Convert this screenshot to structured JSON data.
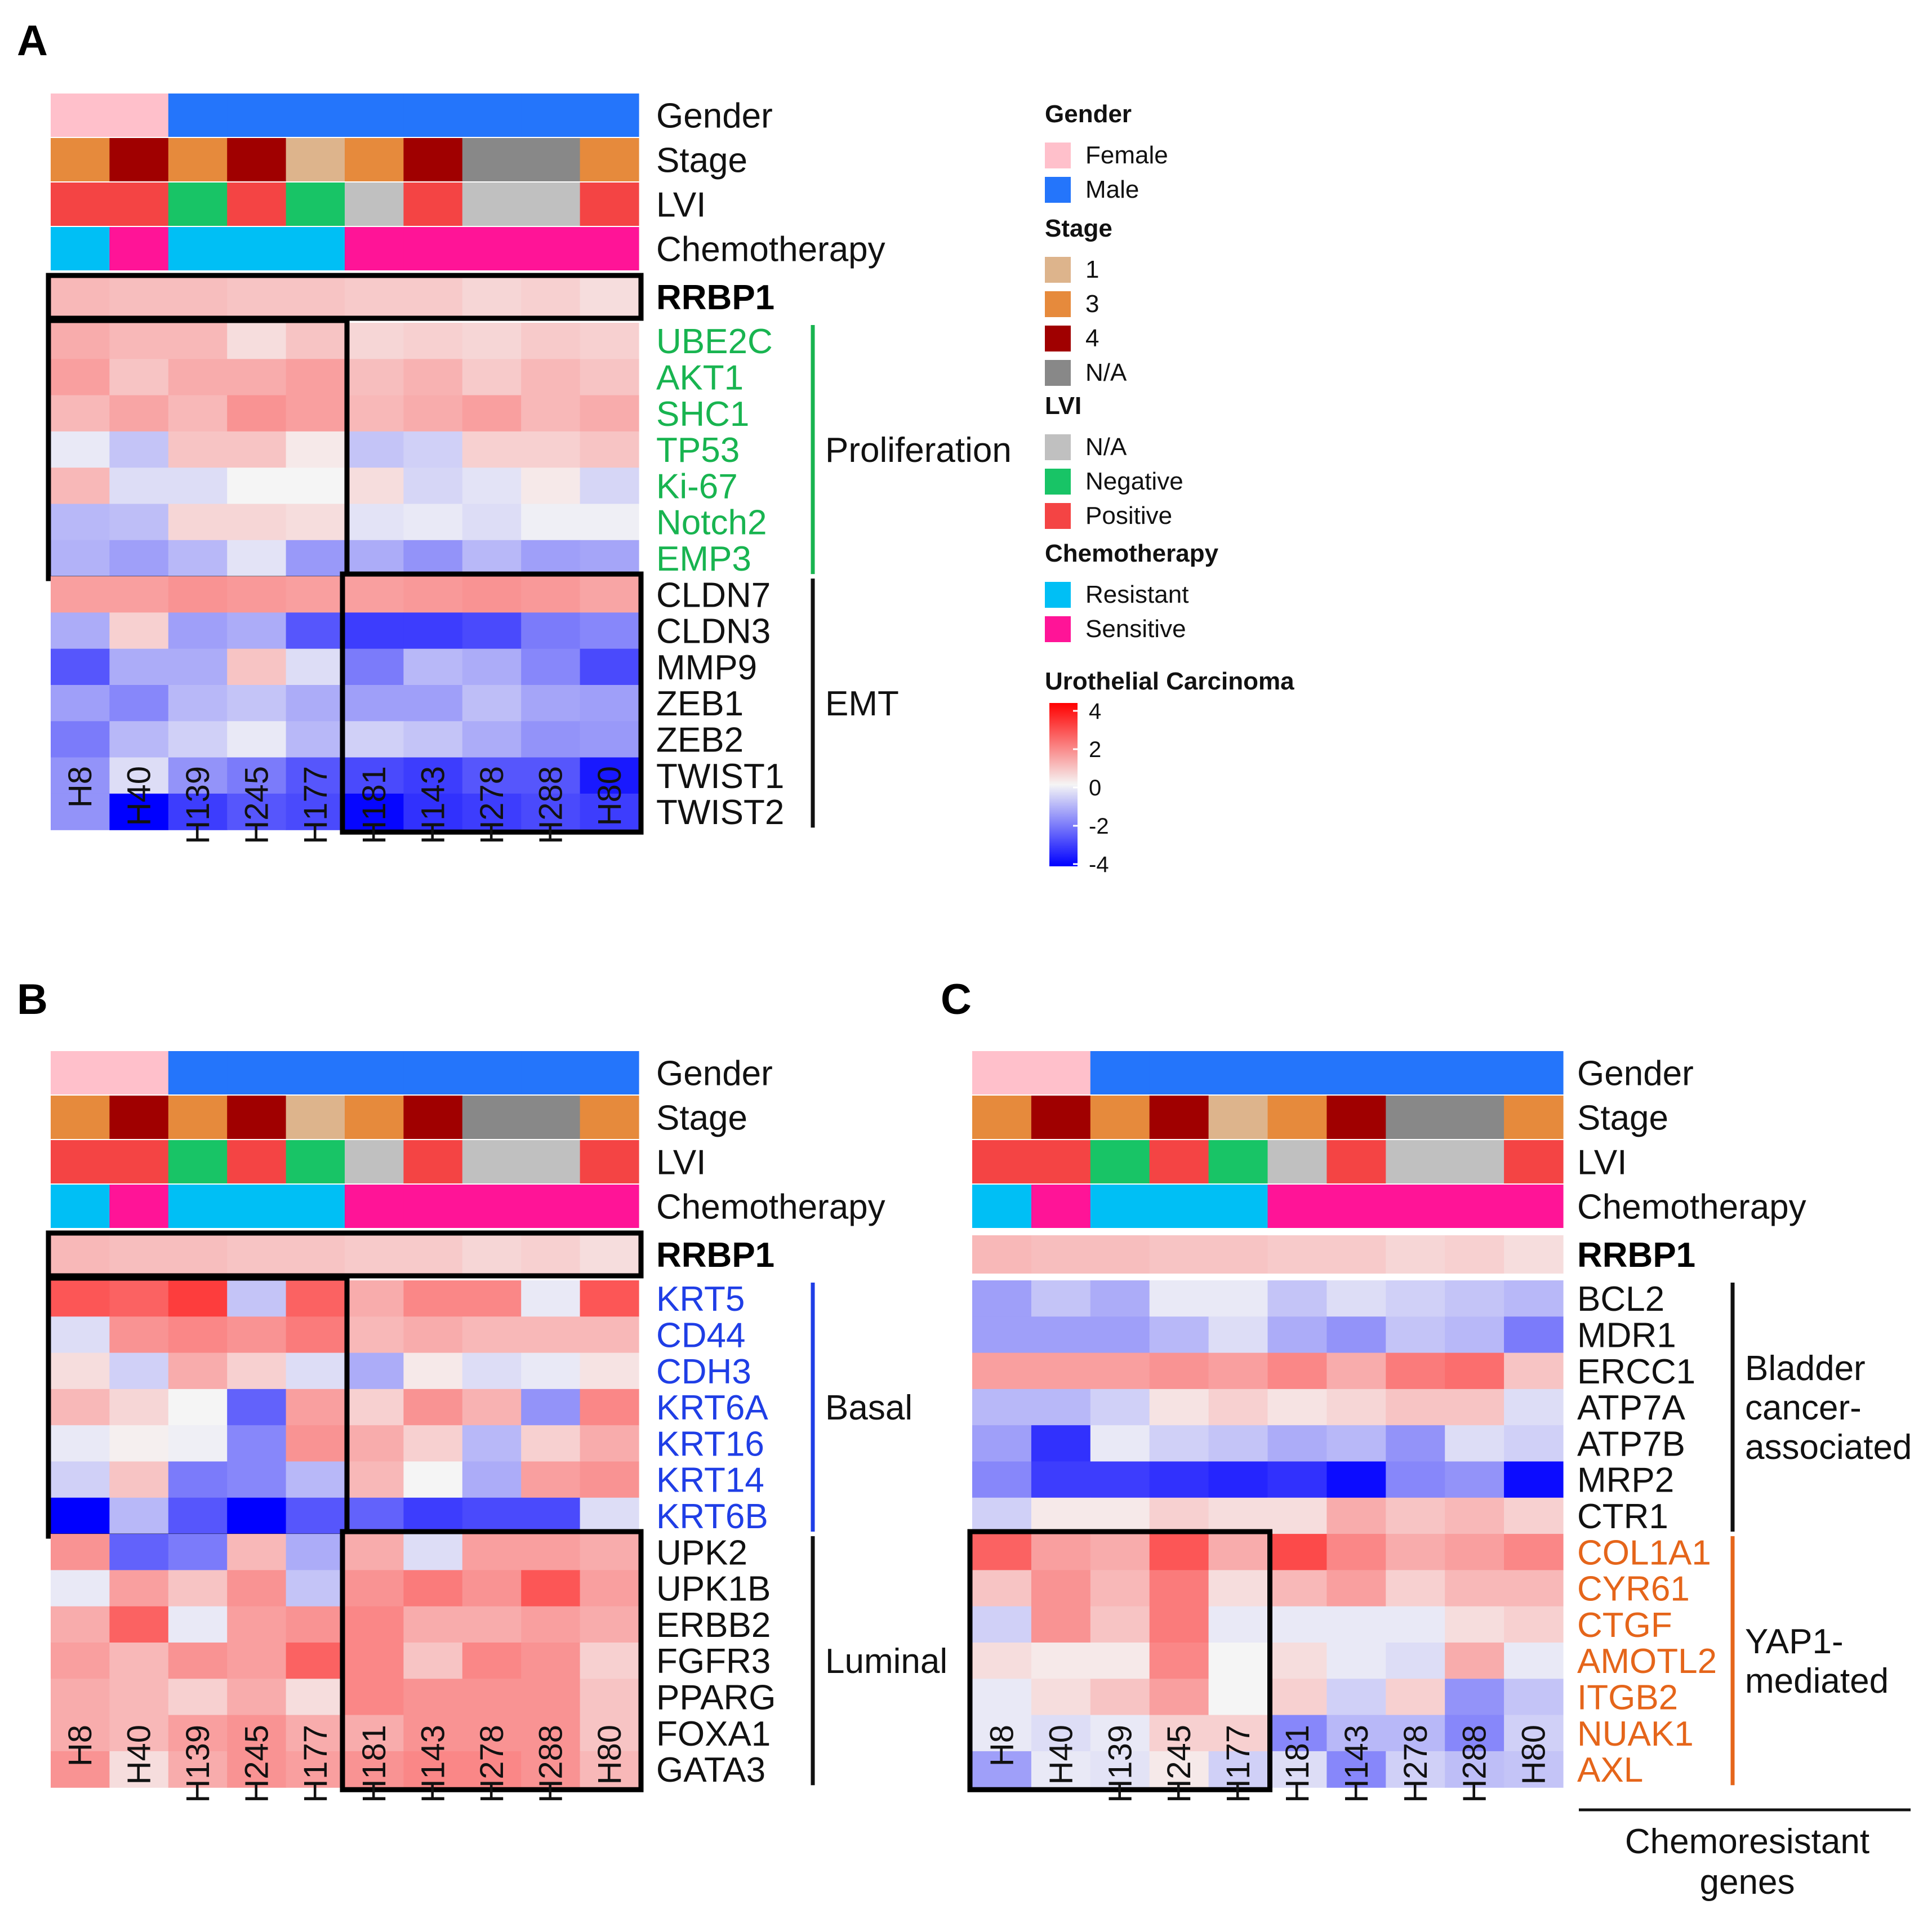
{
  "colors": {
    "Female": "#ffc0cb",
    "Male": "#2475fb",
    "stage_1": "#ddb48c",
    "stage_3": "#e68a3c",
    "stage_4": "#a00000",
    "stage_NA": "#888888",
    "lvi_NA": "#c0c0c0",
    "lvi_Negative": "#18c466",
    "lvi_Positive": "#f44444",
    "Resistant": "#00bff5",
    "Sensitive": "#ff1497",
    "green_genes": "#18b450",
    "blue_genes": "#1f3ee6",
    "orange_genes": "#e5651a",
    "scale_low": "#0000ff",
    "scale_mid": "#f5f5f5",
    "scale_high": "#ff0000"
  },
  "legend": {
    "gender_title": "Gender",
    "gender_items": [
      "Female",
      "Male"
    ],
    "stage_title": "Stage",
    "stage_items": [
      "1",
      "3",
      "4",
      "N/A"
    ],
    "lvi_title": "LVI",
    "lvi_items": [
      "N/A",
      "Negative",
      "Positive"
    ],
    "chemo_title": "Chemotherapy",
    "chemo_items": [
      "Resistant",
      "Sensitive"
    ],
    "scale_title": "Urothelial Carcinoma",
    "scale_ticks": [
      "4",
      "2",
      "0",
      "-2",
      "-4"
    ]
  },
  "chart_data": [
    {
      "type": "heatmap",
      "panel": "A",
      "samples": [
        "H8",
        "H40",
        "H139",
        "H245",
        "H177",
        "H181",
        "H143",
        "H278",
        "H288",
        "H80"
      ],
      "annotations": {
        "labels": [
          "Gender",
          "Stage",
          "LVI",
          "Chemotherapy"
        ],
        "Gender": [
          "Female",
          "Female",
          "Male",
          "Male",
          "Male",
          "Male",
          "Male",
          "Male",
          "Male",
          "Male"
        ],
        "Stage": [
          "3",
          "4",
          "3",
          "4",
          "1",
          "3",
          "4",
          "N/A",
          "N/A",
          "3"
        ],
        "LVI": [
          "Positive",
          "Positive",
          "Negative",
          "Positive",
          "Negative",
          "N/A",
          "Positive",
          "N/A",
          "N/A",
          "Positive"
        ],
        "Chemotherapy": [
          "Resistant",
          "Sensitive",
          "Resistant",
          "Resistant",
          "Resistant",
          "Sensitive",
          "Sensitive",
          "Sensitive",
          "Sensitive",
          "Sensitive"
        ]
      },
      "rrbp1": {
        "label": "RRBP1",
        "values": [
          1.0,
          0.9,
          0.9,
          0.8,
          0.8,
          0.7,
          0.7,
          0.5,
          0.6,
          0.4
        ]
      },
      "groups": [
        {
          "name": "Proliferation",
          "gene_color": "green",
          "genes": [
            "UBE2C",
            "AKT1",
            "SHC1",
            "TP53",
            "Ki-67",
            "Notch2",
            "EMP3"
          ],
          "values": [
            [
              1.2,
              1.0,
              1.0,
              0.4,
              0.8,
              0.5,
              0.6,
              0.5,
              0.7,
              0.6
            ],
            [
              1.4,
              0.8,
              1.2,
              1.2,
              1.4,
              0.9,
              1.1,
              0.7,
              1.0,
              0.8
            ],
            [
              1.0,
              1.3,
              1.0,
              1.6,
              1.4,
              1.0,
              1.2,
              1.4,
              1.0,
              1.2
            ],
            [
              -0.2,
              -0.8,
              0.8,
              0.8,
              0.2,
              -0.8,
              -0.6,
              0.6,
              0.6,
              0.8
            ],
            [
              1.0,
              -0.4,
              -0.4,
              0.0,
              0.0,
              0.4,
              -0.5,
              -0.3,
              0.2,
              -0.5
            ],
            [
              -1.0,
              -0.9,
              0.5,
              0.5,
              0.4,
              -0.3,
              -0.2,
              -0.4,
              -0.1,
              -0.1
            ],
            [
              -1.1,
              -1.4,
              -1.0,
              -0.3,
              -1.5,
              -1.2,
              -1.6,
              -1.0,
              -1.4,
              -1.3
            ]
          ]
        },
        {
          "name": "EMT",
          "gene_color": "black",
          "genes": [
            "CLDN7",
            "CLDN3",
            "MMP9",
            "ZEB1",
            "ZEB2",
            "TWIST1",
            "TWIST2"
          ],
          "values": [
            [
              1.4,
              1.4,
              1.6,
              1.5,
              1.4,
              1.4,
              1.5,
              1.6,
              1.5,
              1.3
            ],
            [
              -1.2,
              0.6,
              -1.4,
              -1.2,
              -2.6,
              -3.0,
              -3.0,
              -2.8,
              -2.0,
              -1.8
            ],
            [
              -2.6,
              -1.2,
              -1.2,
              0.8,
              -0.4,
              -2.0,
              -1.0,
              -1.2,
              -1.8,
              -2.8
            ],
            [
              -1.4,
              -1.8,
              -1.0,
              -0.8,
              -1.2,
              -1.4,
              -1.4,
              -0.9,
              -1.3,
              -1.4
            ],
            [
              -2.0,
              -1.0,
              -0.6,
              -0.2,
              -1.0,
              -0.6,
              -0.8,
              -1.2,
              -1.6,
              -1.5
            ],
            [
              -1.6,
              -0.4,
              -1.6,
              -2.0,
              -2.6,
              -2.8,
              -3.0,
              -2.6,
              -2.6,
              -3.6
            ],
            [
              -1.6,
              -4.0,
              -3.0,
              -2.6,
              -2.8,
              -3.9,
              -3.2,
              -3.0,
              -2.8,
              -3.0
            ]
          ]
        }
      ]
    },
    {
      "type": "heatmap",
      "panel": "B",
      "samples": [
        "H8",
        "H40",
        "H139",
        "H245",
        "H177",
        "H181",
        "H143",
        "H278",
        "H288",
        "H80"
      ],
      "annotations": {
        "labels": [
          "Gender",
          "Stage",
          "LVI",
          "Chemotherapy"
        ],
        "Gender": [
          "Female",
          "Female",
          "Male",
          "Male",
          "Male",
          "Male",
          "Male",
          "Male",
          "Male",
          "Male"
        ],
        "Stage": [
          "3",
          "4",
          "3",
          "4",
          "1",
          "3",
          "4",
          "N/A",
          "N/A",
          "3"
        ],
        "LVI": [
          "Positive",
          "Positive",
          "Negative",
          "Positive",
          "Negative",
          "N/A",
          "Positive",
          "N/A",
          "N/A",
          "Positive"
        ],
        "Chemotherapy": [
          "Resistant",
          "Sensitive",
          "Resistant",
          "Resistant",
          "Resistant",
          "Sensitive",
          "Sensitive",
          "Sensitive",
          "Sensitive",
          "Sensitive"
        ]
      },
      "rrbp1": {
        "label": "RRBP1",
        "values": [
          1.0,
          0.9,
          0.9,
          0.8,
          0.8,
          0.7,
          0.7,
          0.5,
          0.6,
          0.4
        ]
      },
      "groups": [
        {
          "name": "Basal",
          "gene_color": "blue",
          "genes": [
            "KRT5",
            "CD44",
            "CDH3",
            "KRT6A",
            "KRT16",
            "KRT14",
            "KRT6B"
          ],
          "values": [
            [
              2.6,
              2.4,
              3.0,
              -0.8,
              2.4,
              1.2,
              1.8,
              1.8,
              -0.2,
              2.6
            ],
            [
              -0.4,
              1.6,
              1.8,
              1.6,
              2.0,
              1.0,
              1.2,
              1.0,
              1.0,
              1.0
            ],
            [
              0.4,
              -0.6,
              1.2,
              0.6,
              -0.4,
              -1.2,
              0.2,
              -0.4,
              -0.2,
              0.3
            ],
            [
              1.0,
              0.5,
              0.0,
              -2.4,
              1.4,
              0.6,
              1.6,
              1.1,
              -1.6,
              1.8
            ],
            [
              -0.2,
              0.1,
              -0.1,
              -1.8,
              1.6,
              1.2,
              0.6,
              -1.0,
              0.6,
              1.2
            ],
            [
              -0.6,
              0.8,
              -2.0,
              -1.8,
              -1.0,
              1.0,
              0.0,
              -1.2,
              1.4,
              1.6
            ],
            [
              -4.0,
              -1.0,
              -2.6,
              -4.0,
              -2.6,
              -2.4,
              -3.0,
              -2.8,
              -2.8,
              -0.4
            ]
          ]
        },
        {
          "name": "Luminal",
          "gene_color": "black",
          "genes": [
            "UPK2",
            "UPK1B",
            "ERBB2",
            "FGFR3",
            "PPARG",
            "FOXA1",
            "GATA3"
          ],
          "values": [
            [
              1.6,
              -2.4,
              -2.0,
              1.0,
              -1.2,
              1.2,
              -0.4,
              1.4,
              1.4,
              1.2
            ],
            [
              -0.2,
              1.4,
              0.8,
              1.6,
              -0.8,
              1.6,
              2.0,
              1.6,
              2.6,
              1.4
            ],
            [
              1.2,
              2.4,
              -0.2,
              1.4,
              1.6,
              1.8,
              1.2,
              1.2,
              1.4,
              1.2
            ],
            [
              1.4,
              1.0,
              1.6,
              1.4,
              2.4,
              1.8,
              0.8,
              1.8,
              1.6,
              0.6
            ],
            [
              1.2,
              1.0,
              0.6,
              1.2,
              0.4,
              1.8,
              1.6,
              1.6,
              1.6,
              0.8
            ],
            [
              1.2,
              1.0,
              1.4,
              1.6,
              1.2,
              1.2,
              1.6,
              1.6,
              1.6,
              0.8
            ],
            [
              1.6,
              0.4,
              1.2,
              1.6,
              1.4,
              1.6,
              1.8,
              1.8,
              1.6,
              1.0
            ]
          ]
        }
      ]
    },
    {
      "type": "heatmap",
      "panel": "C",
      "samples": [
        "H8",
        "H40",
        "H139",
        "H245",
        "H177",
        "H181",
        "H143",
        "H278",
        "H288",
        "H80"
      ],
      "annotations": {
        "labels": [
          "Gender",
          "Stage",
          "LVI",
          "Chemotherapy"
        ],
        "Gender": [
          "Female",
          "Female",
          "Male",
          "Male",
          "Male",
          "Male",
          "Male",
          "Male",
          "Male",
          "Male"
        ],
        "Stage": [
          "3",
          "4",
          "3",
          "4",
          "1",
          "3",
          "4",
          "N/A",
          "N/A",
          "3"
        ],
        "LVI": [
          "Positive",
          "Positive",
          "Negative",
          "Positive",
          "Negative",
          "N/A",
          "Positive",
          "N/A",
          "N/A",
          "Positive"
        ],
        "Chemotherapy": [
          "Resistant",
          "Sensitive",
          "Resistant",
          "Resistant",
          "Resistant",
          "Sensitive",
          "Sensitive",
          "Sensitive",
          "Sensitive",
          "Sensitive"
        ]
      },
      "rrbp1": {
        "label": "RRBP1",
        "values": [
          1.0,
          0.9,
          0.9,
          0.8,
          0.8,
          0.7,
          0.7,
          0.5,
          0.6,
          0.4
        ]
      },
      "groups": [
        {
          "name": "Bladder cancer-associated",
          "name_lines": [
            "Bladder",
            "cancer-",
            "associated"
          ],
          "gene_color": "black",
          "genes": [
            "BCL2",
            "MDR1",
            "ERCC1",
            "ATP7A",
            "ATP7B",
            "MRP2",
            "CTR1"
          ],
          "values": [
            [
              -1.4,
              -0.8,
              -1.2,
              -0.2,
              -0.2,
              -0.8,
              -0.4,
              -0.6,
              -0.8,
              -1.0
            ],
            [
              -1.4,
              -1.4,
              -1.4,
              -1.0,
              -0.4,
              -1.2,
              -1.6,
              -0.8,
              -1.0,
              -2.0
            ],
            [
              1.4,
              1.4,
              1.4,
              1.6,
              1.4,
              1.8,
              1.2,
              2.0,
              2.2,
              0.8
            ],
            [
              -1.0,
              -1.0,
              -0.6,
              0.3,
              0.6,
              0.3,
              0.5,
              0.8,
              0.8,
              -0.4
            ],
            [
              -1.4,
              -3.2,
              -0.2,
              -0.6,
              -0.8,
              -1.2,
              -1.0,
              -1.6,
              -0.4,
              -0.6
            ],
            [
              -1.8,
              -3.0,
              -3.0,
              -3.2,
              -3.4,
              -3.2,
              -3.8,
              -1.8,
              -1.6,
              -3.8
            ],
            [
              -0.6,
              0.2,
              0.2,
              0.6,
              0.4,
              0.4,
              1.2,
              0.8,
              1.0,
              0.6
            ]
          ]
        },
        {
          "name": "YAP1-mediated",
          "name_lines": [
            "YAP1-",
            "mediated"
          ],
          "gene_color": "orange",
          "genes": [
            "COL1A1",
            "CYR61",
            "CTGF",
            "AMOTL2",
            "ITGB2",
            "NUAK1",
            "AXL"
          ],
          "values": [
            [
              2.4,
              1.4,
              1.2,
              2.6,
              1.2,
              2.8,
              1.8,
              1.2,
              1.4,
              1.8
            ],
            [
              0.8,
              1.6,
              1.0,
              2.0,
              0.4,
              1.0,
              1.4,
              0.6,
              1.0,
              1.0
            ],
            [
              -0.6,
              1.6,
              0.8,
              2.0,
              -0.2,
              -0.2,
              -0.2,
              -0.2,
              0.4,
              0.6
            ],
            [
              0.4,
              0.2,
              0.2,
              1.8,
              0.0,
              0.4,
              -0.2,
              -0.4,
              1.2,
              -0.2
            ],
            [
              -0.2,
              0.4,
              0.8,
              1.4,
              0.0,
              0.6,
              -0.6,
              0.6,
              -1.6,
              -0.8
            ],
            [
              -0.2,
              -0.4,
              -0.2,
              0.6,
              0.6,
              -1.8,
              -1.0,
              -1.0,
              -1.8,
              -0.6
            ],
            [
              -1.4,
              -0.2,
              -0.3,
              0.2,
              -0.6,
              -0.4,
              -1.8,
              -0.6,
              -0.9,
              -0.8
            ]
          ]
        }
      ],
      "footer_label": "Chemoresistant genes",
      "footer_lines": [
        "Chemoresistant",
        "genes"
      ]
    }
  ]
}
